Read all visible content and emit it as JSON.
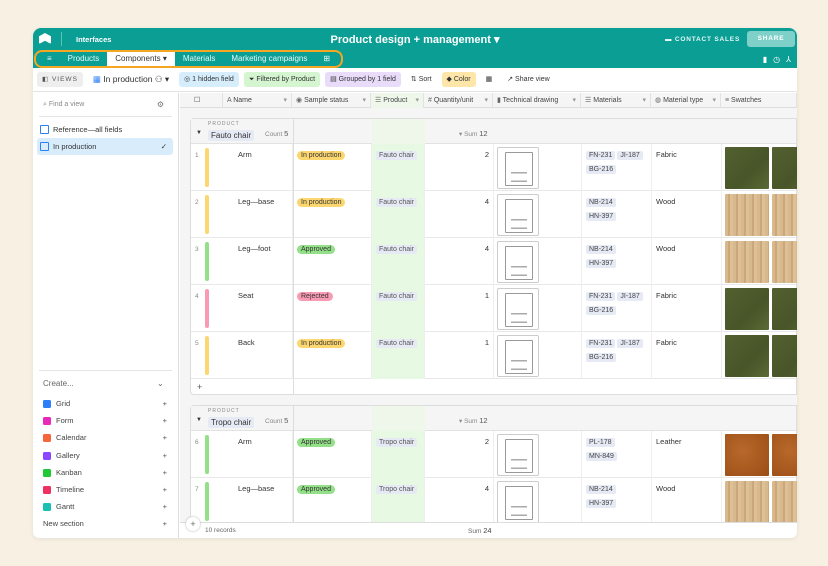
{
  "header": {
    "interfaces": "Interfaces",
    "title": "Product design + management ▾",
    "contact_sales": "CONTACT SALES",
    "share": "SHARE"
  },
  "tabs": [
    {
      "label": "Products"
    },
    {
      "label": "Components ▾"
    },
    {
      "label": "Materials"
    },
    {
      "label": "Marketing campaigns"
    }
  ],
  "toolbar": {
    "views": "VIEWS",
    "view_name": "In production",
    "hidden": "1 hidden field",
    "filtered": "Filtered by Product",
    "grouped": "Grouped by 1 field",
    "sort": "Sort",
    "color": "Color",
    "share_view": "Share view"
  },
  "sidebar": {
    "find_placeholder": "Find a view",
    "views": [
      {
        "label": "Reference—all fields"
      },
      {
        "label": "In production"
      }
    ],
    "create": "Create...",
    "create_items": [
      {
        "label": "Grid",
        "color": "#2d7ff9"
      },
      {
        "label": "Form",
        "color": "#e929ba"
      },
      {
        "label": "Calendar",
        "color": "#f7653b"
      },
      {
        "label": "Gallery",
        "color": "#8b46ff"
      },
      {
        "label": "Kanban",
        "color": "#20c933"
      },
      {
        "label": "Timeline",
        "color": "#ef3061"
      },
      {
        "label": "Gantt",
        "color": "#18bfb3"
      }
    ],
    "new_section": "New section"
  },
  "columns": [
    "Name",
    "Sample status",
    "Product",
    "Quantity/unit",
    "Technical drawing",
    "Materials",
    "Material type",
    "Swatches"
  ],
  "status_colors": {
    "In production": "#fcd66f",
    "Approved": "#93e088",
    "Rejected": "#f99bb4"
  },
  "groups": [
    {
      "label": "PRODUCT",
      "name": "Fauto chair",
      "count_label": "Count",
      "count": "5",
      "sum_label": "Sum",
      "sum": "12",
      "rows": [
        {
          "n": "1",
          "name": "Arm",
          "status": "In production",
          "product": "Fauto chair",
          "qty": "2",
          "materials": [
            "FN-231",
            "JI-187",
            "BG-216"
          ],
          "type": "Fabric",
          "swatch": "fabric"
        },
        {
          "n": "2",
          "name": "Leg—base",
          "status": "In production",
          "product": "Fauto chair",
          "qty": "4",
          "materials": [
            "NB-214",
            "HN-397"
          ],
          "type": "Wood",
          "swatch": "wood"
        },
        {
          "n": "3",
          "name": "Leg—foot",
          "status": "Approved",
          "product": "Fauto chair",
          "qty": "4",
          "materials": [
            "NB-214",
            "HN-397"
          ],
          "type": "Wood",
          "swatch": "wood"
        },
        {
          "n": "4",
          "name": "Seat",
          "status": "Rejected",
          "product": "Fauto chair",
          "qty": "1",
          "materials": [
            "FN-231",
            "JI-187",
            "BG-216"
          ],
          "type": "Fabric",
          "swatch": "fabric"
        },
        {
          "n": "5",
          "name": "Back",
          "status": "In production",
          "product": "Fauto chair",
          "qty": "1",
          "materials": [
            "FN-231",
            "JI-187",
            "BG-216"
          ],
          "type": "Fabric",
          "swatch": "fabric"
        }
      ]
    },
    {
      "label": "PRODUCT",
      "name": "Tropo chair",
      "count_label": "Count",
      "count": "5",
      "sum_label": "Sum",
      "sum": "12",
      "rows": [
        {
          "n": "6",
          "name": "Arm",
          "status": "Approved",
          "product": "Tropo chair",
          "qty": "2",
          "materials": [
            "PL-178",
            "MN-849"
          ],
          "type": "Leather",
          "swatch": "leather"
        },
        {
          "n": "7",
          "name": "Leg—base",
          "status": "Approved",
          "product": "Tropo chair",
          "qty": "4",
          "materials": [
            "NB-214",
            "HN-397"
          ],
          "type": "Wood",
          "swatch": "wood"
        }
      ]
    }
  ],
  "footer": {
    "records": "10 records",
    "sum_label": "Sum",
    "sum": "24"
  }
}
